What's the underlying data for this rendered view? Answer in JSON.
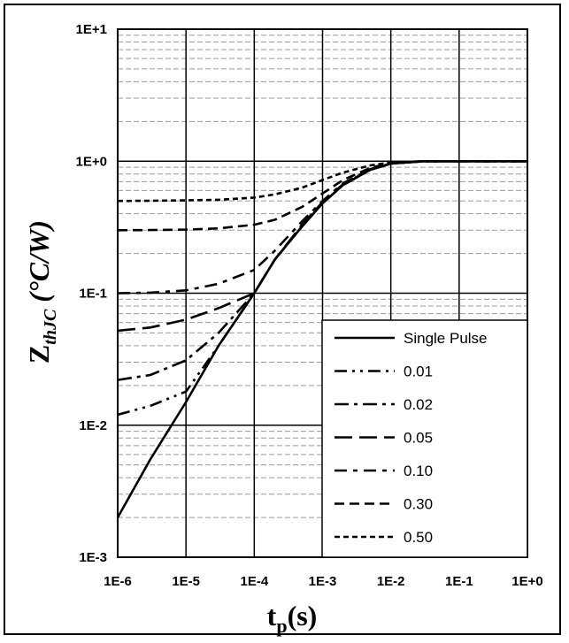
{
  "chart_data": {
    "type": "line",
    "xscale": "log",
    "yscale": "log",
    "xlim": [
      1e-06,
      1
    ],
    "ylim": [
      0.001,
      10
    ],
    "xticks": [
      "1E-6",
      "1E-5",
      "1E-4",
      "1E-3",
      "1E-2",
      "1E-1",
      "1E+0"
    ],
    "yticks": [
      "1E-3",
      "1E-2",
      "1E-1",
      "1E+0",
      "1E+1"
    ],
    "xlabel": {
      "main": "t",
      "sub": "p",
      "rest": "(s)"
    },
    "ylabel": {
      "main": "Z",
      "sub": "thJC",
      "rest": " (°C/W)"
    },
    "grid": true,
    "minor_grid": true,
    "legend_position": "bottom-right",
    "series": [
      {
        "name": "Single Pulse",
        "dash": "solid",
        "x": [
          1e-06,
          3e-06,
          1e-05,
          3e-05,
          0.0001,
          0.0002,
          0.0005,
          0.001,
          0.002,
          0.005,
          0.01,
          0.03,
          1
        ],
        "y": [
          0.002,
          0.0055,
          0.015,
          0.04,
          0.1,
          0.18,
          0.32,
          0.48,
          0.66,
          0.86,
          0.96,
          1.0,
          1.0
        ]
      },
      {
        "name": "0.01",
        "dash": "dash-dot-dot",
        "x": [
          1e-06,
          3e-06,
          1e-05,
          3e-05,
          0.0001,
          0.0002,
          0.0005,
          0.001,
          0.002,
          0.005,
          0.01,
          0.03,
          1
        ],
        "y": [
          0.012,
          0.014,
          0.018,
          0.04,
          0.1,
          0.18,
          0.32,
          0.48,
          0.66,
          0.86,
          0.96,
          1.0,
          1.0
        ]
      },
      {
        "name": "0.02",
        "dash": "dash-dot",
        "x": [
          1e-06,
          3e-06,
          1e-05,
          3e-05,
          0.0001,
          0.0002,
          0.0005,
          0.001,
          0.002,
          0.005,
          0.01,
          0.03,
          1
        ],
        "y": [
          0.022,
          0.024,
          0.031,
          0.05,
          0.1,
          0.18,
          0.32,
          0.48,
          0.66,
          0.86,
          0.96,
          1.0,
          1.0
        ]
      },
      {
        "name": "0.05",
        "dash": "long-dash",
        "x": [
          1e-06,
          3e-06,
          1e-05,
          3e-05,
          0.0001,
          0.0002,
          0.0005,
          0.001,
          0.002,
          0.005,
          0.01,
          0.03,
          1
        ],
        "y": [
          0.052,
          0.055,
          0.063,
          0.077,
          0.1,
          0.18,
          0.33,
          0.49,
          0.67,
          0.86,
          0.96,
          1.0,
          1.0
        ]
      },
      {
        "name": "0.10",
        "dash": "dash-dot-long",
        "x": [
          1e-06,
          3e-06,
          1e-05,
          3e-05,
          0.0001,
          0.0002,
          0.0005,
          0.001,
          0.002,
          0.005,
          0.01,
          0.03,
          1
        ],
        "y": [
          0.1,
          0.101,
          0.105,
          0.118,
          0.15,
          0.21,
          0.35,
          0.5,
          0.68,
          0.87,
          0.96,
          1.0,
          1.0
        ]
      },
      {
        "name": "0.30",
        "dash": "dash",
        "x": [
          1e-06,
          3e-06,
          1e-05,
          3e-05,
          0.0001,
          0.0002,
          0.0005,
          0.001,
          0.002,
          0.005,
          0.01,
          0.03,
          1
        ],
        "y": [
          0.3,
          0.301,
          0.303,
          0.31,
          0.33,
          0.36,
          0.45,
          0.57,
          0.72,
          0.89,
          0.97,
          1.0,
          1.0
        ]
      },
      {
        "name": "0.50",
        "dash": "short-dash",
        "x": [
          1e-06,
          3e-06,
          1e-05,
          3e-05,
          0.0001,
          0.0002,
          0.0005,
          0.001,
          0.002,
          0.005,
          0.01,
          0.03,
          1
        ],
        "y": [
          0.5,
          0.501,
          0.505,
          0.51,
          0.53,
          0.56,
          0.63,
          0.72,
          0.82,
          0.93,
          0.98,
          1.0,
          1.0
        ]
      }
    ]
  }
}
